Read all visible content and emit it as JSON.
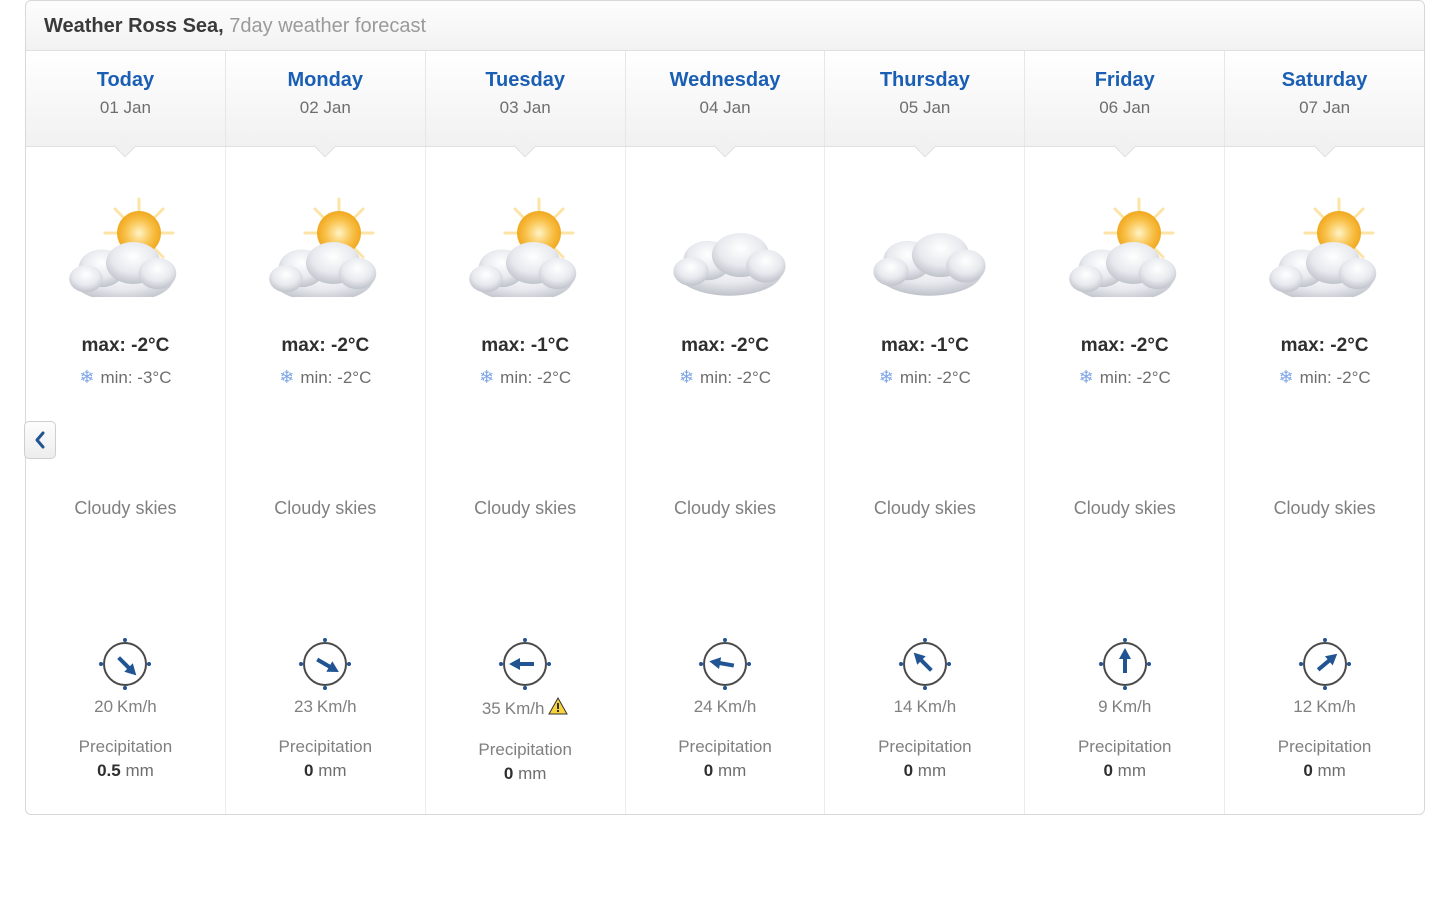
{
  "header": {
    "location_prefix": "Weather ",
    "location": "Ross Sea,",
    "subtitle": " 7day weather forecast"
  },
  "colors": {
    "day_name": "#1a5fb4",
    "day_name_hex_alt": "#205493",
    "text_muted": "#808080",
    "text_dark": "#2f2f2f",
    "border": "#e0e0e0",
    "compass_ring": "#4a4a4a",
    "compass_tick": "#205493",
    "arrow_fill": "#205493",
    "snow_icon": "#7fa6e6",
    "sun": "#f9c24c",
    "sun_glow": "#fce29e",
    "cloud_light": "#f5f5f7",
    "cloud_mid": "#d7d9de",
    "cloud_dark": "#b7bbc3",
    "warn_bg": "#f8d43a",
    "warn_border": "#333333"
  },
  "labels": {
    "max_prefix": "max: ",
    "min_prefix": "min: ",
    "precip": "Precipitation",
    "kmh_suffix": " Km/h",
    "mm_suffix": " mm"
  },
  "days": [
    {
      "name": "Today",
      "date": "01 Jan",
      "icon": "partly-cloudy",
      "tmax": "-2°C",
      "tmin": "-3°C",
      "desc": "Cloudy skies",
      "wind_dir_deg": 135,
      "wind_speed": "20",
      "wind_warn": false,
      "precip": "0.5"
    },
    {
      "name": "Monday",
      "date": "02 Jan",
      "icon": "partly-cloudy",
      "tmax": "-2°C",
      "tmin": "-2°C",
      "desc": "Cloudy skies",
      "wind_dir_deg": 120,
      "wind_speed": "23",
      "wind_warn": false,
      "precip": "0"
    },
    {
      "name": "Tuesday",
      "date": "03 Jan",
      "icon": "partly-cloudy",
      "tmax": "-1°C",
      "tmin": "-2°C",
      "desc": "Cloudy skies",
      "wind_dir_deg": 270,
      "wind_speed": "35",
      "wind_warn": true,
      "precip": "0"
    },
    {
      "name": "Wednesday",
      "date": "04 Jan",
      "icon": "cloudy",
      "tmax": "-2°C",
      "tmin": "-2°C",
      "desc": "Cloudy skies",
      "wind_dir_deg": 280,
      "wind_speed": "24",
      "wind_warn": false,
      "precip": "0"
    },
    {
      "name": "Thursday",
      "date": "05 Jan",
      "icon": "cloudy",
      "tmax": "-1°C",
      "tmin": "-2°C",
      "desc": "Cloudy skies",
      "wind_dir_deg": 315,
      "wind_speed": "14",
      "wind_warn": false,
      "precip": "0"
    },
    {
      "name": "Friday",
      "date": "06 Jan",
      "icon": "partly-cloudy",
      "tmax": "-2°C",
      "tmin": "-2°C",
      "desc": "Cloudy skies",
      "wind_dir_deg": 0,
      "wind_speed": "9",
      "wind_warn": false,
      "precip": "0"
    },
    {
      "name": "Saturday",
      "date": "07 Jan",
      "icon": "partly-cloudy",
      "tmax": "-2°C",
      "tmin": "-2°C",
      "desc": "Cloudy skies",
      "wind_dir_deg": 50,
      "wind_speed": "12",
      "wind_warn": false,
      "precip": "0"
    }
  ]
}
